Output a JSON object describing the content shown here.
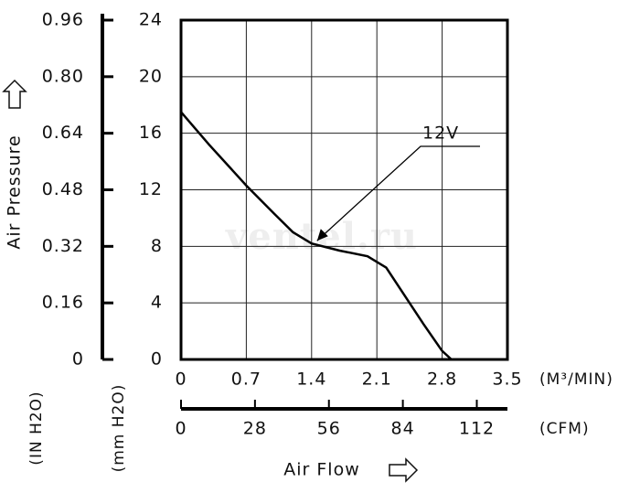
{
  "chart_data": {
    "type": "line",
    "watermark": "ventel.ru",
    "x_label": "Air Flow",
    "y_label": "Air Pressure",
    "x_unit": "(M³/MIN)",
    "x2_unit": "(CFM)",
    "y_unit": "(mm H2O)",
    "y2_unit": "(IN H2O)",
    "x": [
      0,
      0.3,
      0.7,
      1.0,
      1.2,
      1.4,
      1.7,
      2.0,
      2.2,
      2.4,
      2.6,
      2.8,
      2.9
    ],
    "series": [
      {
        "name": "12V",
        "color": "#000000",
        "values": [
          17.5,
          15.2,
          12.3,
          10.3,
          9.0,
          8.2,
          7.7,
          7.3,
          6.5,
          4.5,
          2.5,
          0.6,
          0
        ]
      }
    ],
    "xlim": [
      0,
      3.5
    ],
    "xticks": [
      0,
      0.7,
      1.4,
      2.1,
      2.8,
      3.5
    ],
    "x2lim": [
      0,
      123.6
    ],
    "x2ticks": [
      0,
      28,
      56,
      84,
      112
    ],
    "ylim": [
      0,
      24
    ],
    "yticks": [
      0,
      4,
      8,
      12,
      16,
      20,
      24
    ],
    "y2lim": [
      0,
      0.96
    ],
    "y2ticks": [
      0,
      0.16,
      0.32,
      0.48,
      0.64,
      {
        "value": 0.8,
        "label": "0.80"
      },
      0.96
    ],
    "grid": true
  }
}
